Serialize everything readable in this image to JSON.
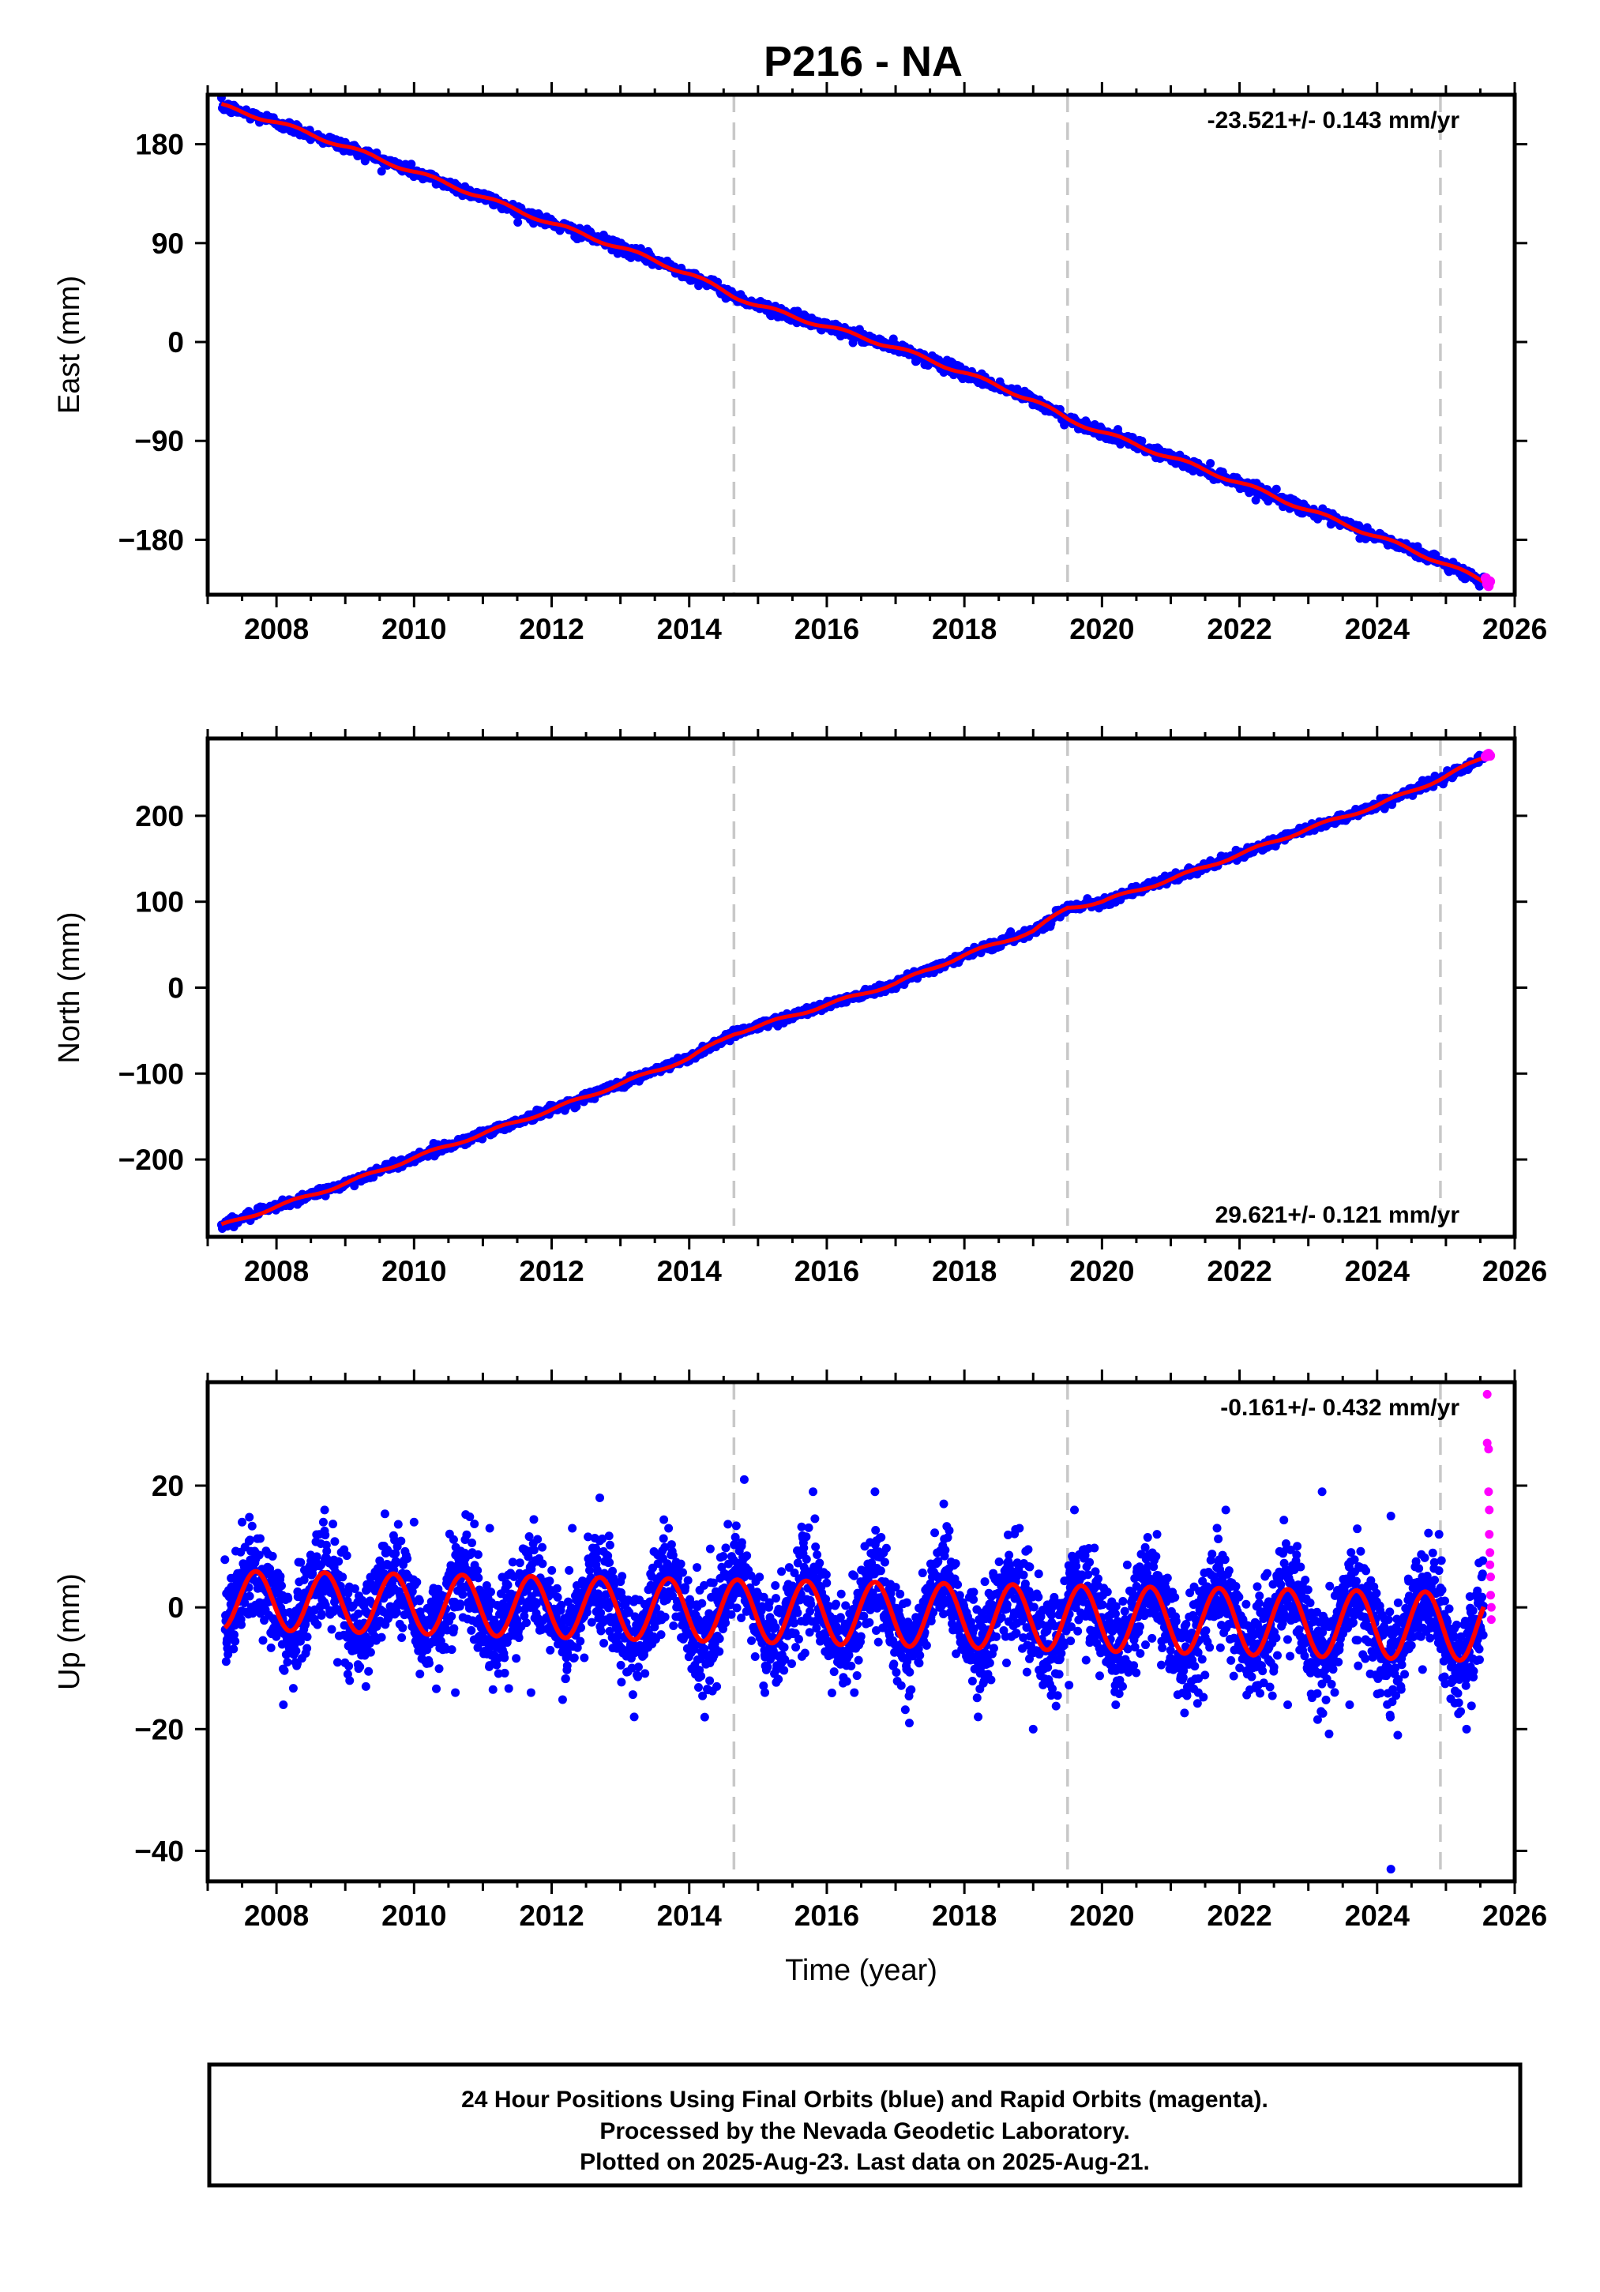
{
  "title": "P216 - NA",
  "colors": {
    "final_orbits": "#0000ff",
    "rapid_orbits": "#ff00ff",
    "model_fit": "#ff0000",
    "dashed_lines": "#c8c8c8",
    "frame": "#000000"
  },
  "chart_data": [
    {
      "type": "scatter",
      "ylabel": "East (mm)",
      "xlabel": "",
      "rate_text": "-23.521+/- 0.143 mm/yr",
      "xlim": [
        2007.0,
        2026.0
      ],
      "ylim": [
        -230,
        225
      ],
      "x_ticks": [
        2008,
        2010,
        2012,
        2014,
        2016,
        2018,
        2020,
        2022,
        2024,
        2026
      ],
      "y_ticks": [
        180,
        90,
        0,
        -90,
        -180
      ],
      "y_tick_labels": [
        "180",
        "90",
        "0",
        "−90",
        "−180"
      ],
      "dashed_epochs": [
        2014.65,
        2019.5,
        2024.92
      ],
      "grid": false,
      "series": [
        {
          "name": "Final Orbits",
          "kind": "points",
          "color": "#0000ff",
          "x": [
            2007.2,
            2008.0,
            2009.0,
            2010.0,
            2011.0,
            2012.0,
            2013.0,
            2014.0,
            2014.65,
            2015.0,
            2016.0,
            2017.0,
            2018.0,
            2019.0,
            2019.5,
            2020.0,
            2021.0,
            2022.0,
            2023.0,
            2024.0,
            2024.92,
            2025.55
          ],
          "y": [
            215,
            200,
            178,
            155,
            132,
            108,
            86,
            62,
            42,
            33,
            14,
            -5,
            -28,
            -53,
            -70,
            -82,
            -105,
            -128,
            -153,
            -177,
            -200,
            -218
          ]
        },
        {
          "name": "Rapid Orbits",
          "kind": "points",
          "color": "#ff00ff",
          "x": [
            2025.58,
            2025.6,
            2025.62,
            2025.64
          ],
          "y": [
            -215,
            -220,
            -222,
            -218
          ]
        },
        {
          "name": "Model",
          "kind": "line",
          "color": "#ff0000",
          "x": [
            2007.2,
            2008.0,
            2009.0,
            2010.0,
            2011.0,
            2012.0,
            2013.0,
            2014.0,
            2014.65,
            2015.0,
            2016.0,
            2017.0,
            2018.0,
            2019.0,
            2019.5,
            2020.0,
            2021.0,
            2022.0,
            2023.0,
            2024.0,
            2024.92,
            2025.55
          ],
          "y": [
            215,
            200,
            178,
            155,
            132,
            108,
            86,
            62,
            42,
            33,
            14,
            -5,
            -28,
            -53,
            -70,
            -82,
            -105,
            -128,
            -153,
            -177,
            -200,
            -218
          ]
        }
      ]
    },
    {
      "type": "scatter",
      "ylabel": "North (mm)",
      "xlabel": "",
      "rate_text": "29.621+/- 0.121 mm/yr",
      "xlim": [
        2007.0,
        2026.0
      ],
      "ylim": [
        -290,
        290
      ],
      "x_ticks": [
        2008,
        2010,
        2012,
        2014,
        2016,
        2018,
        2020,
        2022,
        2024,
        2026
      ],
      "y_ticks": [
        200,
        100,
        0,
        -100,
        -200
      ],
      "y_tick_labels": [
        "200",
        "100",
        "0",
        "−100",
        "−200"
      ],
      "dashed_epochs": [
        2014.65,
        2019.5,
        2024.92
      ],
      "grid": false,
      "series": [
        {
          "name": "Final Orbits",
          "kind": "points",
          "color": "#0000ff",
          "x": [
            2007.2,
            2008.0,
            2009.0,
            2010.0,
            2011.0,
            2012.0,
            2013.0,
            2014.0,
            2014.65,
            2015.0,
            2016.0,
            2017.0,
            2018.0,
            2019.0,
            2019.5,
            2020.0,
            2021.0,
            2022.0,
            2023.0,
            2024.0,
            2024.92,
            2025.55
          ],
          "y": [
            -277,
            -255,
            -228,
            -198,
            -170,
            -142,
            -112,
            -82,
            -53,
            -45,
            -20,
            5,
            38,
            66,
            93,
            100,
            126,
            155,
            185,
            212,
            243,
            268
          ]
        },
        {
          "name": "Rapid Orbits",
          "kind": "points",
          "color": "#ff00ff",
          "x": [
            2025.58,
            2025.6,
            2025.62,
            2025.64
          ],
          "y": [
            269,
            271,
            272,
            270
          ]
        },
        {
          "name": "Model",
          "kind": "line",
          "color": "#ff0000",
          "x": [
            2007.2,
            2008.0,
            2009.0,
            2010.0,
            2011.0,
            2012.0,
            2013.0,
            2014.0,
            2014.65,
            2015.0,
            2016.0,
            2017.0,
            2018.0,
            2019.0,
            2019.5,
            2020.0,
            2021.0,
            2022.0,
            2023.0,
            2024.0,
            2024.92,
            2025.55
          ],
          "y": [
            -277,
            -255,
            -228,
            -198,
            -170,
            -142,
            -112,
            -82,
            -53,
            -45,
            -20,
            5,
            38,
            66,
            93,
            100,
            126,
            155,
            185,
            212,
            243,
            268
          ]
        }
      ]
    },
    {
      "type": "scatter",
      "ylabel": "Up (mm)",
      "xlabel": "Time (year)",
      "rate_text": "-0.161+/- 0.432 mm/yr",
      "xlim": [
        2007.0,
        2026.0
      ],
      "ylim": [
        -45,
        37
      ],
      "x_ticks": [
        2008,
        2010,
        2012,
        2014,
        2016,
        2018,
        2020,
        2022,
        2024,
        2026
      ],
      "y_ticks": [
        20,
        0,
        -20,
        -40
      ],
      "y_tick_labels": [
        "20",
        "0",
        "−20",
        "−40"
      ],
      "dashed_epochs": [
        2014.65,
        2019.5,
        2024.92
      ],
      "grid": false,
      "series": [
        {
          "name": "Final Orbits",
          "kind": "points",
          "color": "#0000ff",
          "x": [
            2007.5,
            2008.1,
            2008.7,
            2009.3,
            2010.0,
            2010.6,
            2011.1,
            2011.7,
            2012.3,
            2012.7,
            2013.2,
            2013.7,
            2014.4,
            2014.8,
            2015.1,
            2015.8,
            2016.4,
            2016.7,
            2017.2,
            2017.7,
            2018.2,
            2018.8,
            2019.0,
            2019.6,
            2020.2,
            2020.8,
            2021.4,
            2021.8,
            2022.7,
            2023.2,
            2023.6,
            2024.2,
            2024.3,
            2024.9,
            2025.3
          ],
          "y": [
            14,
            -16,
            16,
            -13,
            14,
            -14,
            13,
            -14,
            13,
            18,
            -18,
            13,
            -13,
            21,
            -14,
            19,
            -14,
            19,
            -19,
            17,
            -18,
            13,
            -20,
            16,
            -16,
            12,
            -14,
            16,
            -16,
            19,
            -16,
            15,
            -21,
            12,
            -20
          ]
        },
        {
          "name": "Rapid Orbits",
          "kind": "points",
          "color": "#ff00ff",
          "x": [
            2025.6,
            2025.6,
            2025.62,
            2025.62,
            2025.63,
            2025.63,
            2025.64,
            2025.64,
            2025.65,
            2025.65,
            2025.66,
            2025.66
          ],
          "y": [
            35,
            27,
            26,
            19,
            16,
            12,
            9,
            7,
            5,
            2,
            0,
            -2
          ]
        },
        {
          "name": "Model",
          "kind": "line",
          "color": "#ff0000",
          "seasonal": {
            "amplitude_start": 4.8,
            "amplitude_end": 5.6,
            "offset_start": 1.2,
            "offset_end": -3.2,
            "phase_peak_fraction": 0.7
          }
        }
      ]
    }
  ],
  "footer": {
    "line1": "24 Hour Positions Using Final Orbits (blue) and Rapid Orbits (magenta).",
    "line2": "Processed by the Nevada Geodetic Laboratory.",
    "line3": "Plotted on 2025-Aug-23. Last data on 2025-Aug-21."
  }
}
